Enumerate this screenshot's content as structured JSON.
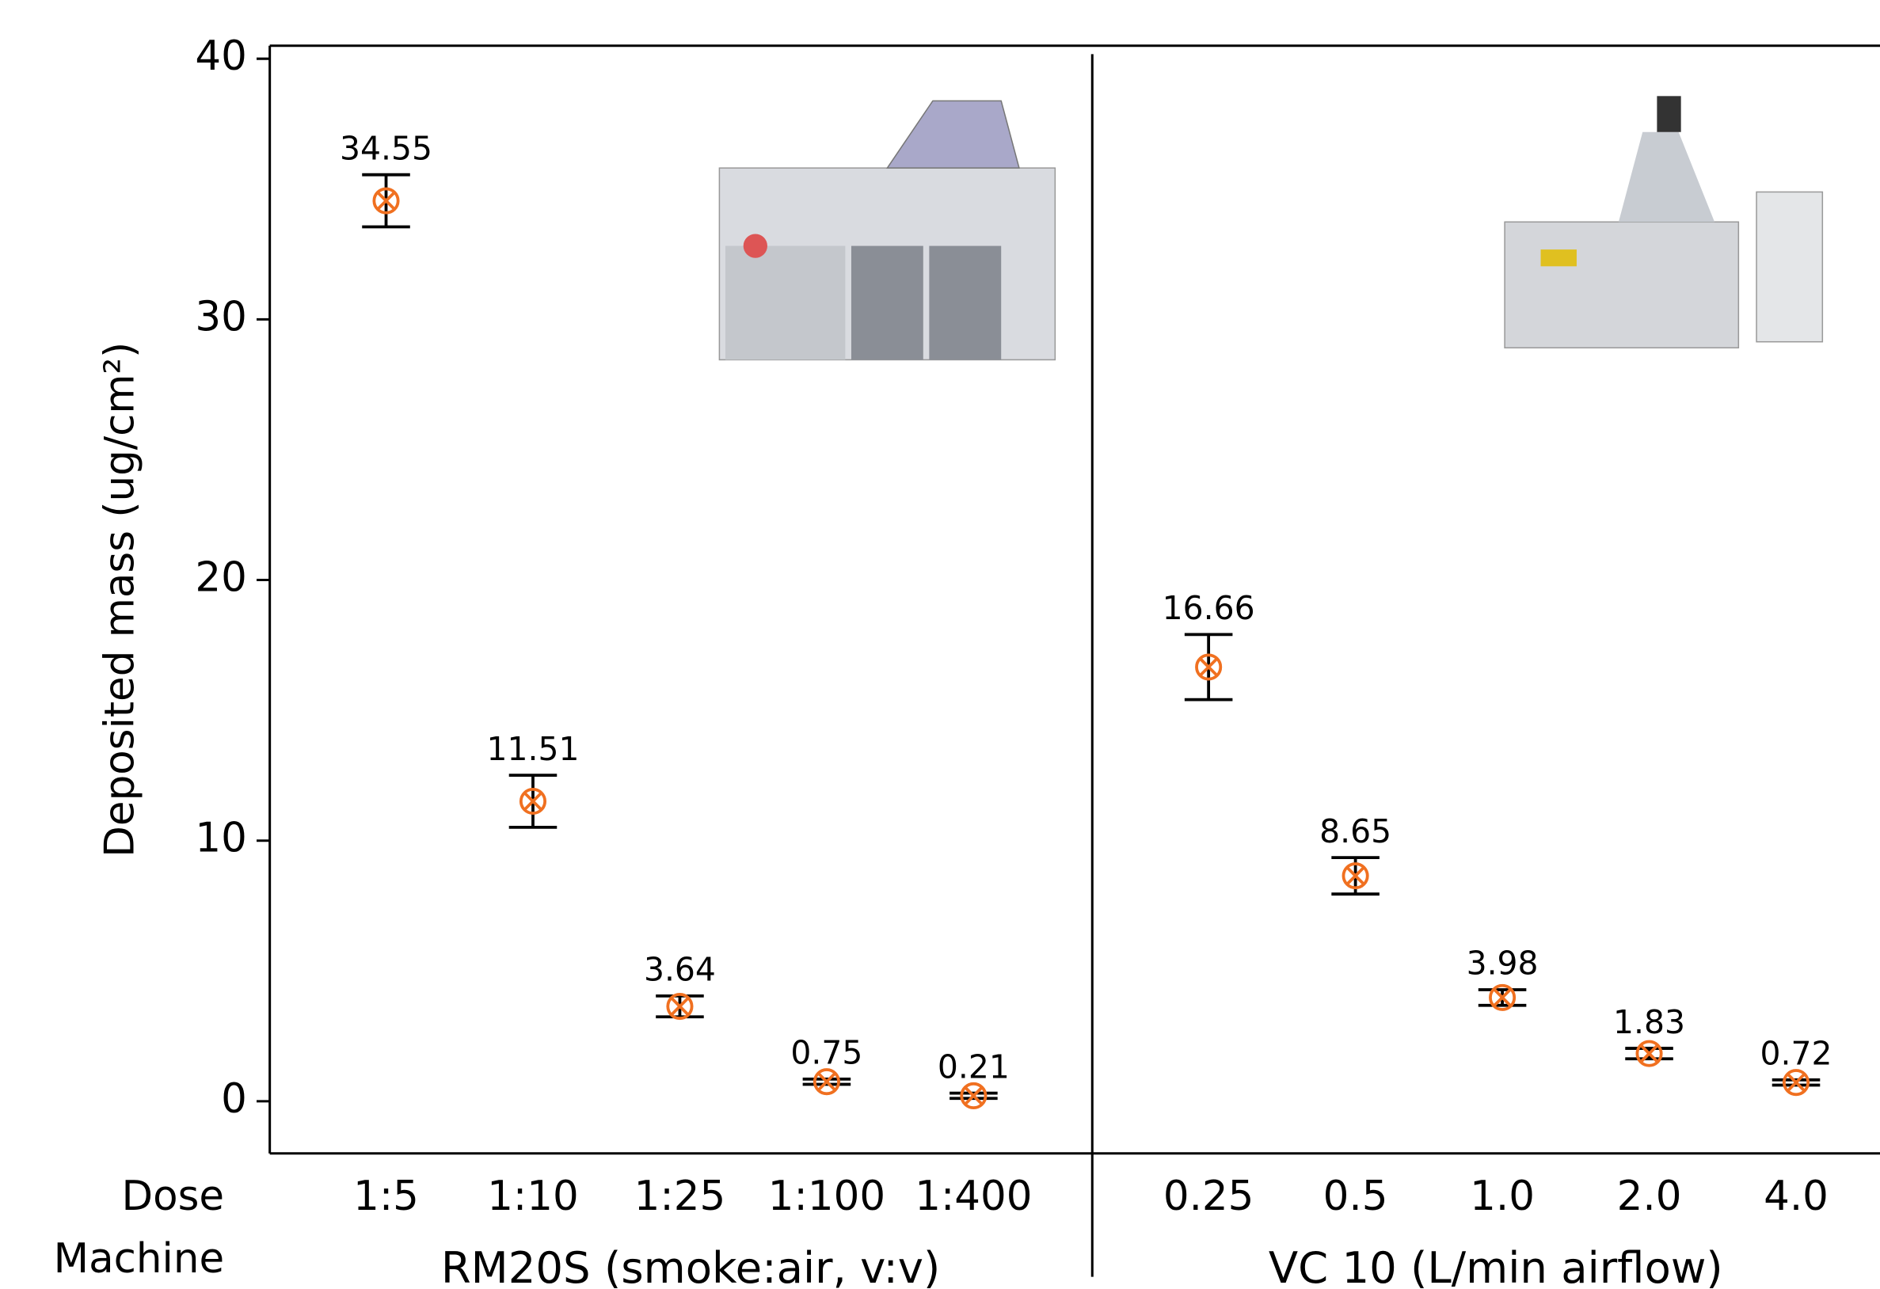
{
  "chart_data": {
    "type": "errorbar_scatter",
    "y_label": "Deposited mass (ug/cm²)",
    "ylim": [
      -2,
      40.5
    ],
    "yticks": [
      0,
      10,
      20,
      30,
      40
    ],
    "row_labels": [
      "Dose",
      "Machine"
    ],
    "color": "#f07020",
    "panels": [
      {
        "machine": "RM20S (smoke:air, v:v)",
        "categories": [
          "1:5",
          "1:10",
          "1:25",
          "1:100",
          "1:400"
        ],
        "values": [
          34.55,
          11.51,
          3.64,
          0.75,
          0.21
        ],
        "errors": [
          1.0,
          1.0,
          0.4,
          0.1,
          0.1
        ]
      },
      {
        "machine": "VC 10 (L/min airflow)",
        "categories": [
          "0.25",
          "0.5",
          "1.0",
          "2.0",
          "4.0"
        ],
        "values": [
          16.66,
          8.65,
          3.98,
          1.83,
          0.72
        ],
        "errors": [
          1.25,
          0.7,
          0.3,
          0.2,
          0.1
        ]
      }
    ]
  }
}
